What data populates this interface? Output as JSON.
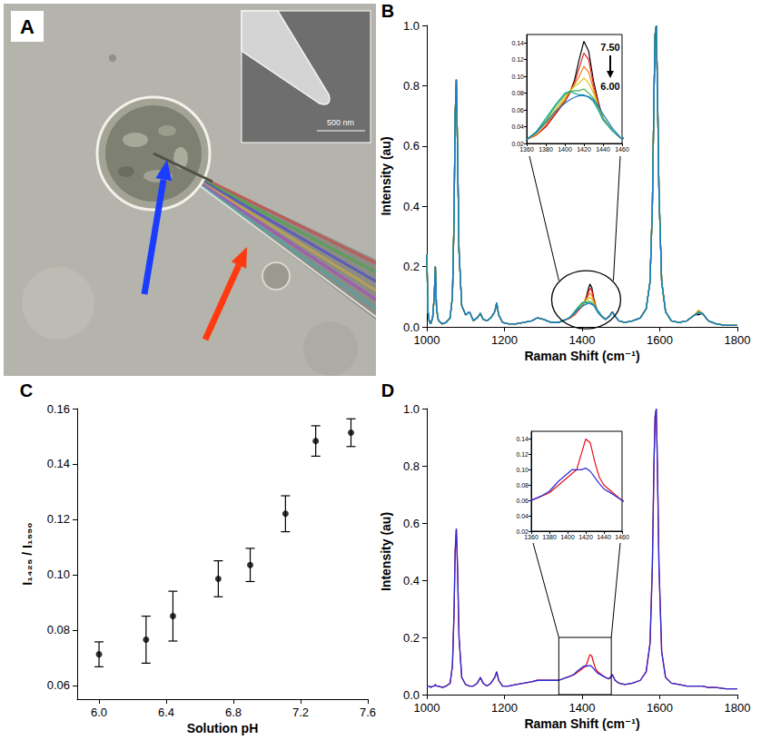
{
  "image_panel": {
    "panel": "A",
    "scale_bar": "500 nm"
  },
  "chart_data": [
    {
      "panel": "B",
      "type": "line",
      "x_label": "Raman Shift (cm⁻¹)",
      "y_label": "Intensity (au)",
      "xlim": [
        1000,
        1800
      ],
      "xticks": [
        1000,
        1200,
        1400,
        1600,
        1800
      ],
      "ylim": [
        0,
        1
      ],
      "yticks": [
        {
          "value": 0,
          "label": "0.0"
        },
        0.2,
        0.4,
        0.6,
        0.8,
        {
          "value": 1,
          "label": "1.0"
        }
      ],
      "x": [
        1000,
        1003,
        1006,
        1010,
        1015,
        1019,
        1022,
        1025,
        1030,
        1040,
        1050,
        1060,
        1066,
        1070,
        1073,
        1076,
        1079,
        1083,
        1090,
        1100,
        1110,
        1120,
        1130,
        1138,
        1145,
        1155,
        1165,
        1175,
        1180,
        1185,
        1195,
        1210,
        1230,
        1250,
        1270,
        1285,
        1300,
        1320,
        1340,
        1360,
        1370,
        1380,
        1390,
        1400,
        1405,
        1410,
        1415,
        1420,
        1425,
        1430,
        1435,
        1440,
        1450,
        1460,
        1470,
        1478,
        1485,
        1495,
        1510,
        1530,
        1550,
        1565,
        1575,
        1581,
        1585,
        1588,
        1591,
        1594,
        1598,
        1605,
        1615,
        1630,
        1650,
        1670,
        1690,
        1700,
        1710,
        1725,
        1745,
        1770,
        1800
      ],
      "series": [
        {
          "color": "#000000",
          "values": [
            0.24,
            0.05,
            0.02,
            0.01,
            0.03,
            0.1,
            0.2,
            0.06,
            0.02,
            0.01,
            0.015,
            0.03,
            0.1,
            0.35,
            0.7,
            0.82,
            0.6,
            0.25,
            0.07,
            0.04,
            0.05,
            0.02,
            0.03,
            0.045,
            0.025,
            0.02,
            0.03,
            0.05,
            0.08,
            0.04,
            0.015,
            0.01,
            0.01,
            0.015,
            0.02,
            0.03,
            0.025,
            0.015,
            0.015,
            0.025,
            0.03,
            0.04,
            0.055,
            0.07,
            0.08,
            0.095,
            0.12,
            0.142,
            0.13,
            0.095,
            0.07,
            0.05,
            0.035,
            0.025,
            0.035,
            0.05,
            0.035,
            0.02,
            0.015,
            0.02,
            0.03,
            0.06,
            0.15,
            0.4,
            0.75,
            0.97,
            1.0,
            0.8,
            0.45,
            0.15,
            0.05,
            0.02,
            0.015,
            0.02,
            0.04,
            0.04,
            0.045,
            0.02,
            0.01,
            0.005,
            0.005
          ]
        },
        {
          "color": "#e8211c",
          "values": [
            0.24,
            0.05,
            0.02,
            0.01,
            0.03,
            0.1,
            0.2,
            0.06,
            0.02,
            0.01,
            0.015,
            0.03,
            0.1,
            0.35,
            0.7,
            0.82,
            0.6,
            0.25,
            0.07,
            0.04,
            0.05,
            0.02,
            0.03,
            0.045,
            0.025,
            0.02,
            0.03,
            0.05,
            0.08,
            0.04,
            0.015,
            0.01,
            0.01,
            0.015,
            0.02,
            0.03,
            0.025,
            0.015,
            0.015,
            0.025,
            0.03,
            0.04,
            0.055,
            0.07,
            0.08,
            0.092,
            0.11,
            0.128,
            0.12,
            0.09,
            0.068,
            0.05,
            0.035,
            0.025,
            0.035,
            0.05,
            0.035,
            0.02,
            0.015,
            0.02,
            0.03,
            0.06,
            0.15,
            0.4,
            0.75,
            0.97,
            1.0,
            0.8,
            0.45,
            0.15,
            0.05,
            0.02,
            0.015,
            0.02,
            0.04,
            0.045,
            0.045,
            0.02,
            0.01,
            0.005,
            0.005
          ]
        },
        {
          "color": "#f07d1a",
          "values": [
            0.24,
            0.05,
            0.02,
            0.01,
            0.03,
            0.1,
            0.2,
            0.06,
            0.02,
            0.01,
            0.015,
            0.03,
            0.1,
            0.35,
            0.7,
            0.82,
            0.6,
            0.25,
            0.07,
            0.04,
            0.05,
            0.02,
            0.03,
            0.045,
            0.025,
            0.02,
            0.03,
            0.05,
            0.08,
            0.04,
            0.015,
            0.01,
            0.01,
            0.015,
            0.02,
            0.03,
            0.025,
            0.015,
            0.015,
            0.025,
            0.03,
            0.042,
            0.058,
            0.072,
            0.082,
            0.09,
            0.1,
            0.112,
            0.105,
            0.085,
            0.066,
            0.05,
            0.035,
            0.025,
            0.035,
            0.05,
            0.035,
            0.02,
            0.015,
            0.02,
            0.03,
            0.06,
            0.15,
            0.4,
            0.75,
            0.97,
            1.0,
            0.8,
            0.45,
            0.15,
            0.05,
            0.02,
            0.015,
            0.02,
            0.04,
            0.055,
            0.045,
            0.02,
            0.01,
            0.005,
            0.005
          ]
        },
        {
          "color": "#d7c41c",
          "values": [
            0.24,
            0.05,
            0.02,
            0.01,
            0.03,
            0.1,
            0.2,
            0.06,
            0.02,
            0.01,
            0.015,
            0.03,
            0.1,
            0.35,
            0.7,
            0.82,
            0.6,
            0.25,
            0.07,
            0.04,
            0.05,
            0.02,
            0.03,
            0.045,
            0.025,
            0.02,
            0.03,
            0.05,
            0.08,
            0.04,
            0.015,
            0.01,
            0.01,
            0.015,
            0.02,
            0.03,
            0.025,
            0.015,
            0.015,
            0.025,
            0.032,
            0.045,
            0.06,
            0.075,
            0.082,
            0.088,
            0.092,
            0.098,
            0.092,
            0.08,
            0.064,
            0.05,
            0.035,
            0.025,
            0.035,
            0.05,
            0.035,
            0.02,
            0.015,
            0.02,
            0.03,
            0.06,
            0.15,
            0.4,
            0.75,
            0.97,
            1.0,
            0.8,
            0.45,
            0.15,
            0.05,
            0.02,
            0.015,
            0.02,
            0.04,
            0.05,
            0.045,
            0.02,
            0.01,
            0.005,
            0.005
          ]
        },
        {
          "color": "#3cb33c",
          "values": [
            0.24,
            0.05,
            0.02,
            0.01,
            0.03,
            0.1,
            0.2,
            0.06,
            0.02,
            0.01,
            0.015,
            0.03,
            0.1,
            0.35,
            0.7,
            0.82,
            0.6,
            0.25,
            0.07,
            0.04,
            0.05,
            0.02,
            0.03,
            0.045,
            0.025,
            0.02,
            0.03,
            0.05,
            0.08,
            0.04,
            0.015,
            0.01,
            0.01,
            0.015,
            0.02,
            0.03,
            0.025,
            0.015,
            0.015,
            0.025,
            0.033,
            0.047,
            0.064,
            0.078,
            0.082,
            0.083,
            0.083,
            0.085,
            0.08,
            0.074,
            0.062,
            0.05,
            0.035,
            0.025,
            0.035,
            0.05,
            0.035,
            0.02,
            0.015,
            0.02,
            0.03,
            0.06,
            0.15,
            0.4,
            0.75,
            0.97,
            1.0,
            0.8,
            0.45,
            0.15,
            0.05,
            0.02,
            0.015,
            0.02,
            0.04,
            0.05,
            0.045,
            0.02,
            0.01,
            0.005,
            0.005
          ]
        },
        {
          "color": "#16a89a",
          "values": [
            0.24,
            0.05,
            0.02,
            0.01,
            0.03,
            0.1,
            0.2,
            0.06,
            0.02,
            0.01,
            0.015,
            0.03,
            0.1,
            0.35,
            0.7,
            0.82,
            0.6,
            0.25,
            0.07,
            0.04,
            0.05,
            0.02,
            0.03,
            0.045,
            0.025,
            0.02,
            0.03,
            0.05,
            0.08,
            0.04,
            0.015,
            0.01,
            0.01,
            0.015,
            0.02,
            0.03,
            0.025,
            0.015,
            0.015,
            0.025,
            0.034,
            0.05,
            0.066,
            0.08,
            0.082,
            0.08,
            0.078,
            0.078,
            0.075,
            0.07,
            0.06,
            0.048,
            0.035,
            0.025,
            0.035,
            0.05,
            0.035,
            0.02,
            0.015,
            0.02,
            0.03,
            0.06,
            0.15,
            0.4,
            0.75,
            0.97,
            1.0,
            0.8,
            0.45,
            0.15,
            0.05,
            0.02,
            0.015,
            0.02,
            0.04,
            0.045,
            0.045,
            0.02,
            0.01,
            0.005,
            0.005
          ]
        },
        {
          "color": "#1f77c8",
          "values": [
            0.24,
            0.05,
            0.02,
            0.01,
            0.03,
            0.1,
            0.2,
            0.06,
            0.02,
            0.01,
            0.015,
            0.03,
            0.1,
            0.35,
            0.7,
            0.82,
            0.6,
            0.25,
            0.07,
            0.04,
            0.05,
            0.02,
            0.03,
            0.045,
            0.025,
            0.02,
            0.03,
            0.05,
            0.08,
            0.04,
            0.015,
            0.01,
            0.01,
            0.015,
            0.02,
            0.03,
            0.025,
            0.015,
            0.015,
            0.025,
            0.033,
            0.045,
            0.058,
            0.068,
            0.072,
            0.075,
            0.077,
            0.077,
            0.076,
            0.072,
            0.065,
            0.055,
            0.038,
            0.025,
            0.035,
            0.05,
            0.035,
            0.02,
            0.015,
            0.02,
            0.03,
            0.06,
            0.15,
            0.4,
            0.75,
            0.97,
            1.0,
            0.8,
            0.45,
            0.15,
            0.05,
            0.02,
            0.015,
            0.02,
            0.04,
            0.045,
            0.045,
            0.02,
            0.01,
            0.005,
            0.005
          ]
        }
      ],
      "inset": {
        "xlim": [
          1360,
          1460
        ],
        "xticks": [
          1360,
          1380,
          1400,
          1420,
          1440,
          1460
        ],
        "ylim": [
          0.02,
          0.15
        ],
        "yticks": [
          0.02,
          0.04,
          0.06,
          0.08,
          {
            "value": 0.1,
            "label": "0.10"
          },
          0.12,
          0.14
        ]
      },
      "annotations": [
        "7.50",
        "6.00"
      ]
    },
    {
      "panel": "C",
      "type": "scatter",
      "x_label": "Solution pH",
      "y_label": "I₁₄₂₅ / I₁₅₉₀",
      "xlim": [
        5.87,
        7.6
      ],
      "xticks": [
        {
          "value": 6,
          "label": "6.0"
        },
        6.4,
        6.8,
        7.2,
        7.6
      ],
      "ylim": [
        0.055,
        0.16
      ],
      "yticks": [
        0.06,
        0.08,
        {
          "value": 0.1,
          "label": "0.10"
        },
        0.12,
        0.14,
        0.16
      ],
      "color": "#000000",
      "marker": "circle",
      "x": [
        6.0,
        6.28,
        6.44,
        6.71,
        6.9,
        7.11,
        7.29,
        7.5
      ],
      "values": [
        0.0712,
        0.0765,
        0.085,
        0.0985,
        0.1035,
        0.122,
        0.1483,
        0.1513
      ],
      "errors": [
        0.0045,
        0.0085,
        0.009,
        0.0065,
        0.006,
        0.0065,
        0.0055,
        0.005
      ]
    },
    {
      "panel": "D",
      "type": "line",
      "x_label": "Raman Shift (cm⁻¹)",
      "y_label": "Intensity (au)",
      "xlim": [
        1000,
        1800
      ],
      "xticks": [
        1000,
        1200,
        1400,
        1600,
        1800
      ],
      "ylim": [
        0,
        1
      ],
      "yticks": [
        {
          "value": 0,
          "label": "0.0"
        },
        0.2,
        0.4,
        0.6,
        0.8,
        {
          "value": 1,
          "label": "1.0"
        }
      ],
      "x": [
        1000,
        1003,
        1006,
        1010,
        1015,
        1019,
        1022,
        1025,
        1030,
        1040,
        1050,
        1060,
        1066,
        1070,
        1073,
        1076,
        1079,
        1083,
        1090,
        1100,
        1110,
        1120,
        1130,
        1138,
        1145,
        1155,
        1165,
        1175,
        1180,
        1185,
        1195,
        1210,
        1230,
        1250,
        1270,
        1285,
        1300,
        1320,
        1340,
        1360,
        1370,
        1380,
        1390,
        1400,
        1405,
        1410,
        1415,
        1420,
        1425,
        1430,
        1435,
        1440,
        1450,
        1460,
        1470,
        1478,
        1485,
        1495,
        1510,
        1530,
        1550,
        1565,
        1575,
        1581,
        1585,
        1588,
        1591,
        1594,
        1598,
        1605,
        1615,
        1630,
        1650,
        1670,
        1690,
        1700,
        1710,
        1725,
        1745,
        1770,
        1800
      ],
      "series": [
        {
          "color": "#e8101a",
          "values": [
            0.03,
            0.03,
            0.03,
            0.025,
            0.03,
            0.03,
            0.035,
            0.03,
            0.03,
            0.025,
            0.03,
            0.04,
            0.1,
            0.28,
            0.5,
            0.58,
            0.45,
            0.2,
            0.06,
            0.035,
            0.03,
            0.03,
            0.04,
            0.06,
            0.04,
            0.03,
            0.04,
            0.06,
            0.08,
            0.05,
            0.03,
            0.03,
            0.035,
            0.04,
            0.045,
            0.05,
            0.05,
            0.05,
            0.05,
            0.06,
            0.065,
            0.07,
            0.08,
            0.09,
            0.095,
            0.1,
            0.12,
            0.14,
            0.135,
            0.11,
            0.09,
            0.08,
            0.07,
            0.06,
            0.055,
            0.07,
            0.05,
            0.04,
            0.035,
            0.04,
            0.05,
            0.08,
            0.18,
            0.45,
            0.8,
            0.97,
            1.0,
            0.8,
            0.45,
            0.15,
            0.06,
            0.04,
            0.035,
            0.03,
            0.03,
            0.03,
            0.03,
            0.025,
            0.025,
            0.02,
            0.02
          ]
        },
        {
          "color": "#2a2ad8",
          "values": [
            0.03,
            0.03,
            0.03,
            0.025,
            0.03,
            0.03,
            0.035,
            0.03,
            0.03,
            0.025,
            0.03,
            0.04,
            0.1,
            0.28,
            0.5,
            0.58,
            0.45,
            0.2,
            0.06,
            0.035,
            0.03,
            0.03,
            0.04,
            0.06,
            0.04,
            0.03,
            0.04,
            0.06,
            0.08,
            0.05,
            0.03,
            0.03,
            0.035,
            0.04,
            0.045,
            0.05,
            0.05,
            0.05,
            0.05,
            0.06,
            0.065,
            0.072,
            0.085,
            0.095,
            0.1,
            0.1,
            0.1,
            0.102,
            0.098,
            0.09,
            0.082,
            0.075,
            0.068,
            0.06,
            0.055,
            0.07,
            0.05,
            0.04,
            0.035,
            0.04,
            0.05,
            0.08,
            0.18,
            0.45,
            0.8,
            0.97,
            1.0,
            0.8,
            0.45,
            0.15,
            0.06,
            0.04,
            0.035,
            0.03,
            0.03,
            0.03,
            0.03,
            0.025,
            0.025,
            0.02,
            0.02
          ]
        }
      ],
      "inset": {
        "xlim": [
          1360,
          1460
        ],
        "xticks": [
          1360,
          1380,
          1400,
          1420,
          1440,
          1460
        ],
        "ylim": [
          0.02,
          0.15
        ],
        "yticks": [
          0.02,
          0.04,
          0.06,
          0.08,
          {
            "value": 0.1,
            "label": "0.10"
          },
          0.12,
          0.14
        ]
      }
    }
  ]
}
